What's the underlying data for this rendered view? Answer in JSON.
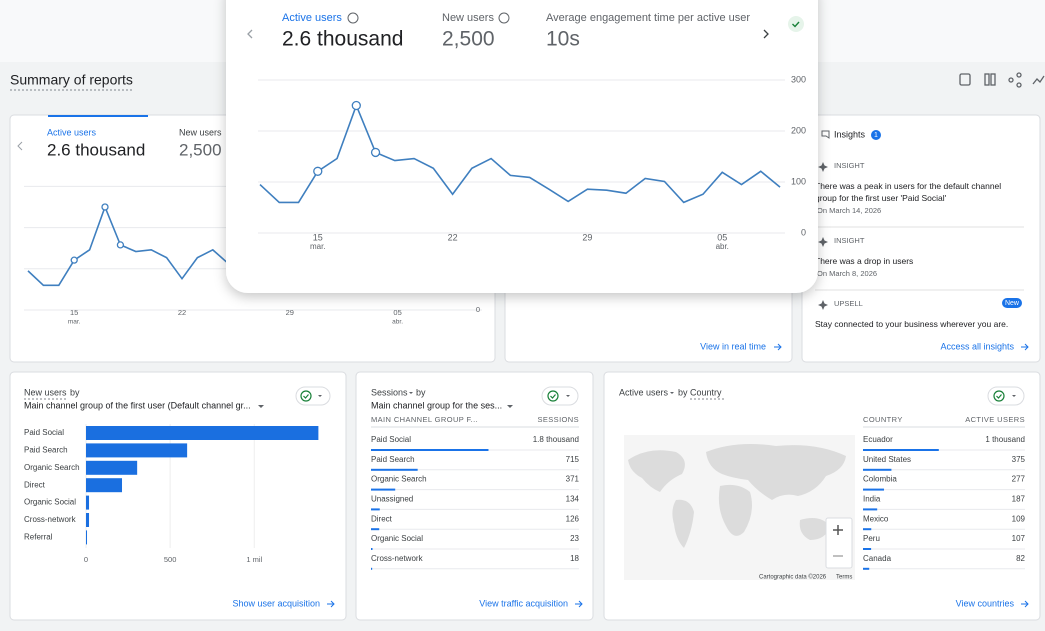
{
  "header": {
    "title": "Summary of reports"
  },
  "overview": {
    "metrics": [
      {
        "label": "Active users",
        "value": "2.6 thousand"
      },
      {
        "label": "New users",
        "value": "2,500"
      },
      {
        "label": "Average engagement time per active user",
        "value": "10s"
      }
    ],
    "chart": {
      "type": "line",
      "color": "#3f7fbf",
      "categories": [
        null,
        null,
        null,
        "15",
        null,
        null,
        null,
        null,
        null,
        null,
        "22",
        null,
        null,
        null,
        null,
        null,
        null,
        "29",
        null,
        null,
        null,
        null,
        null,
        null,
        "05",
        null,
        null,
        null
      ],
      "month_labels": [
        null,
        null,
        null,
        "mar.",
        null,
        null,
        null,
        null,
        null,
        null,
        null,
        null,
        null,
        null,
        null,
        null,
        null,
        null,
        null,
        null,
        null,
        null,
        null,
        null,
        "abr.",
        null,
        null,
        null
      ],
      "values": [
        95,
        60,
        60,
        121,
        146,
        250,
        158,
        142,
        146,
        127,
        76,
        127,
        146,
        113,
        109,
        86,
        62,
        86,
        84,
        78,
        107,
        101,
        60,
        76,
        119,
        95,
        121,
        90
      ],
      "ylim": [
        0,
        300
      ],
      "yticks": [
        0,
        100,
        200,
        300
      ],
      "grid": true
    }
  },
  "realtime_card": {
    "link": "View in real time"
  },
  "insights_card": {
    "title": "Insights",
    "count": 1,
    "items": [
      {
        "tag": "INSIGHT",
        "text": "There was a peak in users for the default channel group for the first user 'Paid Social'",
        "date": "On March 14, 2026"
      },
      {
        "tag": "INSIGHT",
        "text": "There was a drop in users",
        "date": "On March 8, 2026"
      },
      {
        "tag": "UPSELL",
        "badge": "New",
        "text": "Stay connected to your business wherever you are."
      }
    ],
    "link": "Access all insights"
  },
  "new_users_card": {
    "metric": "New users",
    "by": "by",
    "dimension": "Main channel group of the first user (Default channel gr...",
    "chart": {
      "type": "bar",
      "color": "#1a6fe0",
      "categories": [
        "Paid Social",
        "Paid Search",
        "Organic Search",
        "Direct",
        "Organic Social",
        "Cross-network",
        "Referral"
      ],
      "values": [
        1381,
        601,
        304,
        214,
        18,
        18,
        6
      ],
      "xlim": [
        0,
        1450
      ],
      "xticks": [
        0,
        500,
        {
          "value": 1000,
          "label": "1 mil"
        }
      ]
    },
    "link": "Show user acquisition"
  },
  "sessions_card": {
    "metric": "Sessions",
    "by": "by",
    "dimension": "Main channel group for the ses...",
    "table": {
      "columns": [
        "MAIN CHANNEL GROUP F...",
        "SESSIONS"
      ],
      "categories": [
        "Paid Social",
        "Paid Search",
        "Organic Search",
        "Unassigned",
        "Direct",
        "Organic Social",
        "Cross-network"
      ],
      "values": [
        1800,
        715,
        371,
        134,
        126,
        23,
        18
      ],
      "value_labels": [
        "1.8 thousand",
        "715",
        "371",
        "134",
        "126",
        "23",
        "18"
      ]
    },
    "link": "View traffic acquisition"
  },
  "countries_card": {
    "metric": "Active users",
    "by": "by",
    "dimension": "Country",
    "table": {
      "columns": [
        "COUNTRY",
        "ACTIVE USERS"
      ],
      "categories": [
        "Ecuador",
        "United States",
        "Colombia",
        "India",
        "Mexico",
        "Peru",
        "Canada"
      ],
      "values": [
        1000,
        375,
        277,
        187,
        109,
        107,
        82
      ],
      "value_labels": [
        "1 thousand",
        "375",
        "277",
        "187",
        "109",
        "107",
        "82"
      ]
    },
    "map": {
      "attribution": "Cartographic data ©2026",
      "terms": "Terms"
    },
    "link": "View countries"
  }
}
